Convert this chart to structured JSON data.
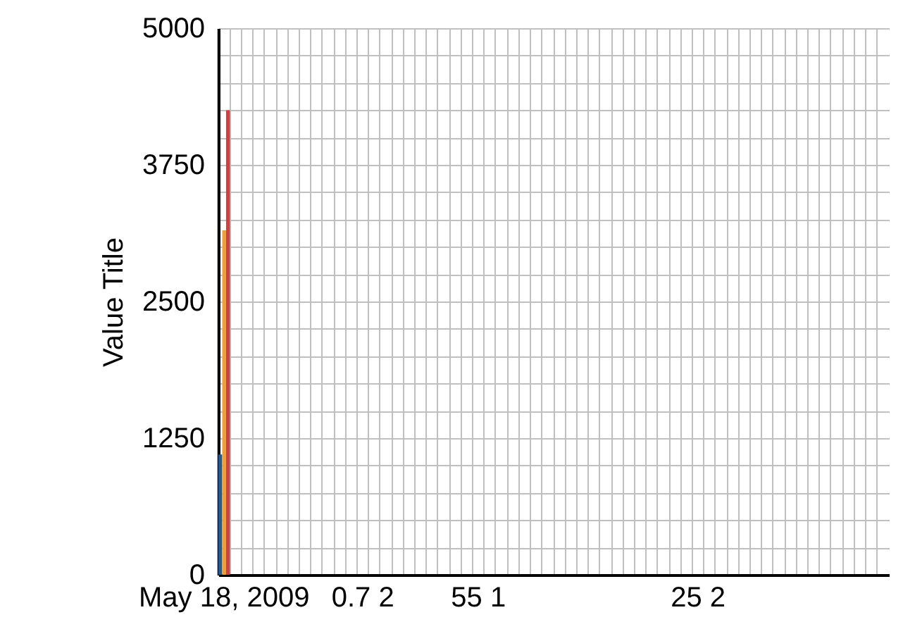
{
  "chart_data": {
    "type": "bar",
    "ylabel": "Value Title",
    "categories": [
      "May 18, 2009",
      null,
      null,
      null,
      null,
      null,
      null,
      null,
      null,
      null,
      null,
      null,
      "0.7 2",
      null,
      null,
      null,
      null,
      null,
      null,
      null,
      null,
      null,
      "55 1",
      null,
      null,
      null,
      null,
      null,
      null,
      null,
      null,
      null,
      null,
      null,
      null,
      null,
      null,
      null,
      null,
      null,
      null,
      "25 2",
      null,
      null,
      null,
      null,
      null,
      null,
      null,
      null,
      null,
      null,
      null,
      null,
      null,
      null,
      null,
      null
    ],
    "series": [
      {
        "color": "#2a5a8a",
        "values": [
          1100,
          null,
          null,
          null,
          null,
          null,
          null,
          null,
          null,
          null,
          null,
          null,
          null,
          null,
          null,
          null,
          null,
          null,
          null,
          null,
          null,
          null,
          null,
          null,
          null,
          null,
          null,
          null,
          null,
          null,
          null,
          null,
          null,
          null,
          null,
          null,
          null,
          null,
          null,
          null,
          null,
          null,
          null,
          null,
          null,
          null,
          null,
          null,
          null,
          null,
          null,
          null,
          null,
          null,
          null,
          null,
          null,
          null
        ]
      },
      {
        "color": "#e8a040",
        "values": [
          3150,
          null,
          null,
          null,
          null,
          null,
          null,
          null,
          null,
          null,
          null,
          null,
          null,
          null,
          null,
          null,
          null,
          null,
          null,
          null,
          null,
          null,
          null,
          null,
          null,
          null,
          null,
          null,
          null,
          null,
          null,
          null,
          null,
          null,
          null,
          null,
          null,
          null,
          null,
          null,
          null,
          null,
          null,
          null,
          null,
          null,
          null,
          null,
          null,
          null,
          null,
          null,
          null,
          null,
          null,
          null,
          null,
          null
        ]
      },
      {
        "color": "#d04040",
        "values": [
          4250,
          null,
          null,
          null,
          null,
          null,
          null,
          null,
          null,
          null,
          null,
          null,
          null,
          null,
          null,
          null,
          null,
          null,
          null,
          null,
          null,
          null,
          null,
          null,
          null,
          null,
          null,
          null,
          null,
          null,
          null,
          null,
          null,
          null,
          null,
          null,
          null,
          null,
          null,
          null,
          null,
          null,
          null,
          null,
          null,
          null,
          null,
          null,
          null,
          null,
          null,
          null,
          null,
          null,
          null,
          null,
          null,
          null
        ]
      }
    ],
    "ylim": [
      0,
      5000
    ],
    "yticks": [
      0,
      {
        "value": 250,
        "label": null
      },
      {
        "value": 500,
        "label": null
      },
      {
        "value": 750,
        "label": null
      },
      {
        "value": 1000,
        "label": null
      },
      1250,
      {
        "value": 1500,
        "label": null
      },
      {
        "value": 1750,
        "label": null
      },
      {
        "value": 2000,
        "label": null
      },
      {
        "value": 2250,
        "label": null
      },
      2500,
      {
        "value": 2750,
        "label": null
      },
      {
        "value": 3000,
        "label": null
      },
      {
        "value": 3250,
        "label": null
      },
      {
        "value": 3500,
        "label": null
      },
      3750,
      {
        "value": 4000,
        "label": null
      },
      {
        "value": 4250,
        "label": null
      },
      {
        "value": 4500,
        "label": null
      },
      {
        "value": 4750,
        "label": null
      },
      5000
    ],
    "grid": true
  }
}
